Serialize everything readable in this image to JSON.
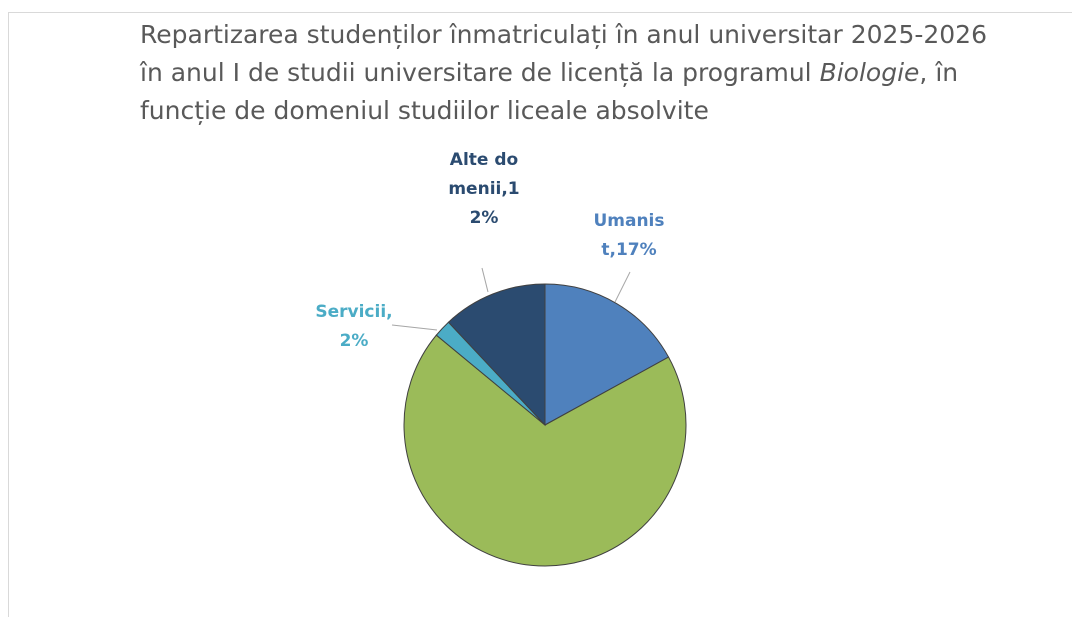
{
  "chart_data": {
    "type": "pie",
    "title": [
      "Repartizarea studenților înmatriculați în anul universitar 2025-2026 în anul I de studii universitare de licență la programul ",
      "Biologie",
      ", în funcție de domeniul studiilor liceale absolvite"
    ],
    "values": [
      17,
      69,
      2,
      12
    ],
    "value_labels": [
      "Umanist,17%",
      null,
      "Servicii,2%",
      "Alte domenii,12%"
    ],
    "colors": [
      "#4f81bd",
      "#9bbb59",
      "#4bacc6",
      "#2b4b70"
    ],
    "label_colors": [
      "#4f81bd",
      null,
      "#4bacc6",
      "#2b4b70"
    ]
  }
}
